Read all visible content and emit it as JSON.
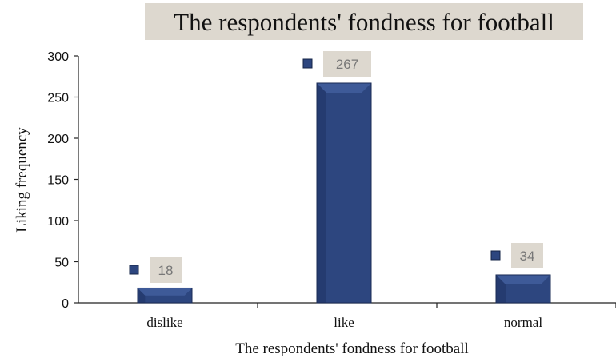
{
  "chart_data": {
    "type": "bar",
    "title": "The respondents' fondness for football",
    "xlabel": "The respondents' fondness for football",
    "ylabel": "Liking frequency",
    "categories": [
      "dislike",
      "like",
      "normal"
    ],
    "values": [
      18,
      267,
      34
    ],
    "ylim": [
      0,
      300
    ],
    "yticks": [
      0,
      50,
      100,
      150,
      200,
      250,
      300
    ],
    "grid": false,
    "legend": "none",
    "colors": {
      "bar": "#2d467f",
      "bar_dark": "#1f3466",
      "bar_light": "#3e5a98",
      "label_box": "#ddd8cf",
      "title_box": "#ddd8cf"
    }
  }
}
